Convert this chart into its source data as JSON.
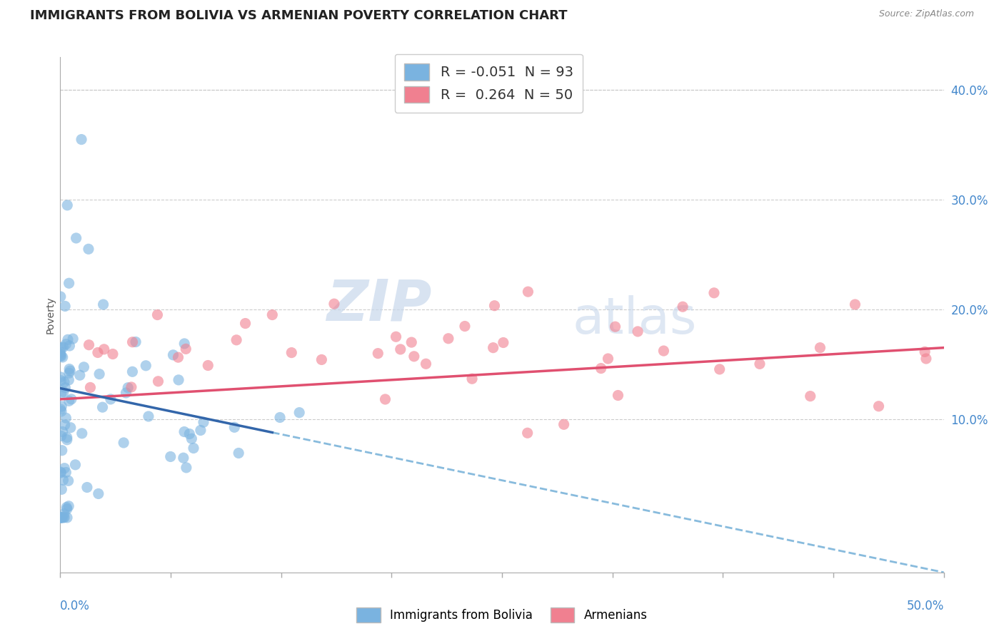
{
  "title": "IMMIGRANTS FROM BOLIVIA VS ARMENIAN POVERTY CORRELATION CHART",
  "source_text": "Source: ZipAtlas.com",
  "ylabel": "Poverty",
  "watermark_zip": "ZIP",
  "watermark_atlas": "atlas",
  "bolivia_R": -0.051,
  "bolivia_N": 93,
  "armenian_R": 0.264,
  "armenian_N": 50,
  "bolivia_color": "#7ab3e0",
  "armenian_color": "#f08090",
  "bolivia_line_color": "#6699cc",
  "armenian_line_color": "#e05070",
  "right_ytick_labels": [
    "10.0%",
    "20.0%",
    "30.0%",
    "40.0%"
  ],
  "right_ytick_values": [
    0.1,
    0.2,
    0.3,
    0.4
  ],
  "xmin": 0.0,
  "xmax": 0.5,
  "ymin": -0.04,
  "ymax": 0.43,
  "grid_color": "#cccccc",
  "background_color": "#ffffff",
  "title_fontsize": 13,
  "label_fontsize": 10,
  "legend_fontsize": 13,
  "bolivia_trend_x0": 0.0,
  "bolivia_trend_y0": 0.128,
  "bolivia_trend_x1": 0.5,
  "bolivia_trend_y1": -0.04,
  "armenian_trend_x0": 0.0,
  "armenian_trend_y0": 0.118,
  "armenian_trend_x1": 0.5,
  "armenian_trend_y1": 0.165
}
